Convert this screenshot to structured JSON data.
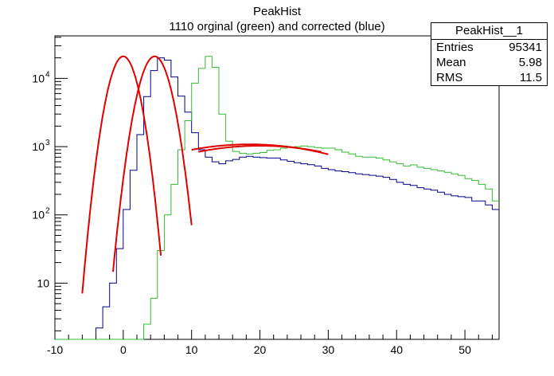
{
  "chart_data": {
    "type": "histogram",
    "title": "PeakHist",
    "subtitle": "1110 orginal (green) and corrected (blue)",
    "xlim": [
      -10,
      55
    ],
    "ylim": [
      1.5,
      42000
    ],
    "yscale": "log",
    "grid": false,
    "x_ticks": [
      -10,
      0,
      10,
      20,
      30,
      40,
      50
    ],
    "x_tick_labels": [
      "-10",
      "0",
      "10",
      "20",
      "30",
      "40",
      "50"
    ],
    "y_ticks": [
      10,
      100,
      1000,
      10000
    ],
    "y_tick_labels": [
      "10",
      "10",
      "10",
      "10"
    ],
    "y_tick_exponents": [
      "",
      "2",
      "3",
      "4"
    ],
    "bin_width": 1,
    "series": [
      {
        "color": "#00008b",
        "style": "step",
        "x_start": -10,
        "values": [
          1.5,
          1.5,
          1.5,
          1.5,
          1.5,
          1.5,
          2.2,
          4.5,
          10,
          32,
          120,
          450,
          1500,
          5400,
          13000,
          20000,
          18500,
          10500,
          5500,
          3200,
          1600,
          900,
          700,
          600,
          560,
          620,
          650,
          700,
          720,
          700,
          690,
          680,
          680,
          640,
          610,
          580,
          560,
          545,
          520,
          480,
          460,
          440,
          430,
          415,
          400,
          390,
          380,
          370,
          355,
          330,
          300,
          280,
          270,
          250,
          240,
          230,
          215,
          200,
          190,
          185,
          180,
          160,
          160,
          140,
          120
        ]
      },
      {
        "color": "#33bb33",
        "style": "step",
        "x_start": -10,
        "values": [
          1.5,
          1.5,
          1.5,
          1.5,
          1.5,
          1.5,
          1.5,
          1.5,
          1.5,
          1.5,
          1.5,
          1.5,
          1.5,
          2.5,
          6,
          30,
          100,
          280,
          900,
          2400,
          8500,
          14000,
          21000,
          14500,
          3000,
          1200,
          850,
          800,
          780,
          800,
          820,
          880,
          900,
          950,
          980,
          1000,
          1020,
          1000,
          970,
          950,
          950,
          900,
          830,
          780,
          720,
          700,
          700,
          680,
          640,
          600,
          560,
          520,
          540,
          500,
          480,
          460,
          440,
          420,
          400,
          380,
          340,
          320,
          280,
          240,
          160
        ]
      }
    ],
    "fits": [
      {
        "color": "#e00000",
        "function": "gaus",
        "constant": 21000,
        "mean": 0,
        "sigma": 1.5,
        "x_range": [
          -6,
          5.5
        ]
      },
      {
        "color": "#e00000",
        "function": "gaus",
        "constant": 21000,
        "mean": 4.6,
        "sigma": 1.6,
        "x_range": [
          -1.5,
          10
        ]
      },
      {
        "color": "#e00000",
        "function": "gaus",
        "constant": 1080,
        "mean": 18.5,
        "sigma": 14,
        "x_range": [
          10,
          30
        ]
      },
      {
        "color": "#e00000",
        "function": "gaus",
        "constant": 1030,
        "mean": 20,
        "sigma": 14,
        "x_range": [
          11,
          29
        ]
      }
    ],
    "stats": {
      "name": "PeakHist__1",
      "entries_label": "Entries",
      "entries": "95341",
      "mean_label": "Mean",
      "mean": "5.98",
      "rms_label": "RMS",
      "rms": "11.5"
    }
  }
}
